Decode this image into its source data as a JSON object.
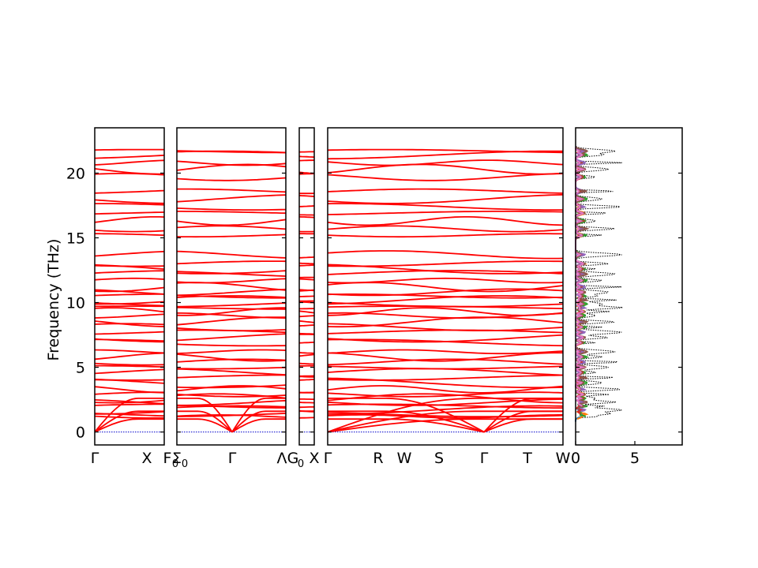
{
  "chart_data": {
    "type": "line",
    "title": "",
    "ylabel": "Frequency (THz)",
    "ylim": [
      -1,
      23.5
    ],
    "y_ticks": [
      0,
      5,
      10,
      15,
      20
    ],
    "band_color": "#ff0000",
    "zero_line_color": "#0000cc",
    "panels": [
      {
        "name": "segment-gamma-x",
        "x_ticks": [
          "Γ",
          "X"
        ]
      },
      {
        "name": "segment-f0-gamma",
        "x_ticks": [
          "F",
          "Σ",
          "Γ",
          "Λ"
        ]
      },
      {
        "name": "segment-g0-x",
        "x_ticks": [
          "G",
          "X"
        ]
      },
      {
        "name": "segment-gamma-w",
        "x_ticks": [
          "Γ",
          "R",
          "W",
          "S",
          "Γ",
          "T",
          "W"
        ]
      }
    ],
    "subscript_label": "0",
    "band_frequencies": [
      1.2,
      1.4,
      1.7,
      2.0,
      2.3,
      2.6,
      2.9,
      3.3,
      3.8,
      4.2,
      4.6,
      5.0,
      5.4,
      5.8,
      6.2,
      6.9,
      7.3,
      7.7,
      8.1,
      8.5,
      9.0,
      9.3,
      9.6,
      9.9,
      10.2,
      10.5,
      10.8,
      11.2,
      11.7,
      12.2,
      12.6,
      13.0,
      13.7,
      15.2,
      15.7,
      16.3,
      16.9,
      17.4,
      18.0,
      18.6,
      19.7,
      20.3,
      20.8,
      21.4,
      21.7
    ],
    "dos": {
      "xlim": [
        0,
        9
      ],
      "x_ticks": [
        0,
        5
      ],
      "total_color": "#000000",
      "partial_colors": [
        "#1f77b4",
        "#ff7f0e",
        "#2ca02c",
        "#d62728",
        "#9467bd",
        "#8c564b",
        "#e377c2"
      ]
    }
  }
}
